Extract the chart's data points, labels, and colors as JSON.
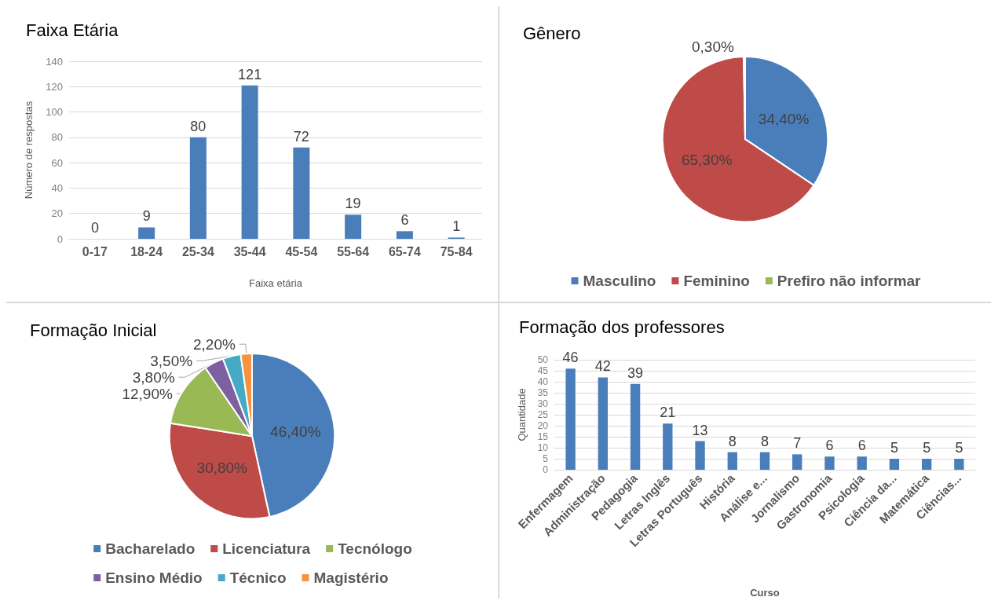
{
  "chart_data": [
    {
      "type": "bar",
      "title": "Faixa Etária",
      "xlabel": "Faixa etária",
      "ylabel": "Número de respostas",
      "categories": [
        "0-17",
        "18-24",
        "25-34",
        "35-44",
        "45-54",
        "55-64",
        "65-74",
        "75-84"
      ],
      "values": [
        0,
        9,
        80,
        121,
        72,
        19,
        6,
        1
      ],
      "color": "#4a7ebb",
      "ylim": [
        0,
        140
      ],
      "yticks": [
        0,
        20,
        40,
        60,
        80,
        100,
        120,
        140
      ],
      "grid": "y",
      "data_labels": true
    },
    {
      "type": "pie",
      "title": "Gênero",
      "categories": [
        "Masculino",
        "Feminino",
        "Prefiro não informar"
      ],
      "values": [
        34.4,
        65.3,
        0.3
      ],
      "colors": [
        "#4a7ebb",
        "#be4b48",
        "#98b954"
      ],
      "value_labels": [
        "34,40%",
        "65,30%",
        "0,30%"
      ],
      "legend": "bottom"
    },
    {
      "type": "pie",
      "title": "Formação Inicial",
      "categories": [
        "Bacharelado",
        "Licenciatura",
        "Tecnólogo",
        "Ensino Médio",
        "Técnico",
        "Magistério"
      ],
      "values": [
        46.4,
        30.8,
        12.9,
        3.8,
        3.5,
        2.2
      ],
      "colors": [
        "#4a7ebb",
        "#be4b48",
        "#98b954",
        "#7d60a0",
        "#46aac5",
        "#f69240"
      ],
      "value_labels": [
        "46,40%",
        "30,80%",
        "12,90%",
        "3,80%",
        "3,50%",
        "2,20%"
      ],
      "legend": "bottom"
    },
    {
      "type": "bar",
      "title": "Formação dos professores",
      "xlabel": "Curso",
      "ylabel": "Quantidade",
      "categories": [
        "Enfermagem",
        "Administração",
        "Pedagogia",
        "Letras Inglês",
        "Letras Português",
        "História",
        "Análise e...",
        "Jornalismo",
        "Gastronomia",
        "Psicologia",
        "Ciência da...",
        "Matemática",
        "Ciências..."
      ],
      "values": [
        46,
        42,
        39,
        21,
        13,
        8,
        8,
        7,
        6,
        6,
        5,
        5,
        5
      ],
      "color": "#4a7ebb",
      "ylim": [
        0,
        50
      ],
      "yticks": [
        0,
        5,
        10,
        15,
        20,
        25,
        30,
        35,
        40,
        45,
        50
      ],
      "grid": "y",
      "data_labels": true
    }
  ]
}
